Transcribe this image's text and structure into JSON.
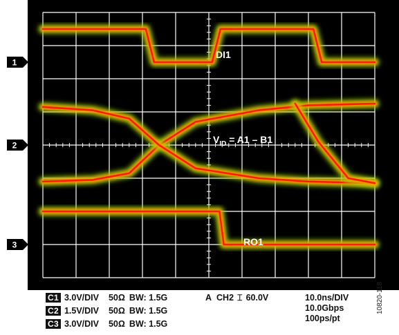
{
  "chart_data": {
    "type": "line",
    "title": "",
    "xlabel": "",
    "ylabel": "",
    "grid": true,
    "divisions": {
      "x": 10,
      "y": 8
    },
    "channel_markers": [
      "1",
      "2",
      "3"
    ],
    "annotations": {
      "di1": "DI1",
      "vid_main": "V",
      "vid_sub": "ID",
      "vid_rest": " = A1 – B1",
      "ro1": "RO1"
    },
    "series": [
      {
        "name": "DI1",
        "x_div": [
          0.0,
          3.1,
          3.35,
          5.1,
          5.35,
          8.15,
          8.4,
          10.0
        ],
        "y_div": [
          0.5,
          0.5,
          1.5,
          1.5,
          0.5,
          0.5,
          1.5,
          1.5
        ]
      },
      {
        "name": "V_ID rising",
        "x_div": [
          0.0,
          1.5,
          2.6,
          3.5,
          4.6,
          6.5,
          8.0,
          10.0
        ],
        "y_div": [
          5.1,
          5.05,
          4.85,
          4.0,
          3.3,
          2.95,
          2.8,
          2.75
        ]
      },
      {
        "name": "V_ID falling",
        "x_div": [
          0.0,
          1.5,
          2.6,
          3.5,
          4.6,
          6.5,
          8.0,
          10.0
        ],
        "y_div": [
          2.85,
          2.95,
          3.2,
          4.0,
          4.7,
          5.0,
          5.1,
          5.15
        ]
      },
      {
        "name": "V_ID transition",
        "x_div": [
          7.6,
          8.3,
          9.2,
          10.0
        ],
        "y_div": [
          2.75,
          3.9,
          5.0,
          5.15
        ]
      },
      {
        "name": "RO1",
        "x_div": [
          0.0,
          5.32,
          5.45,
          5.58,
          10.0
        ],
        "y_div": [
          6.0,
          6.0,
          7.0,
          7.0,
          7.0
        ]
      }
    ],
    "settings": {
      "c1": {
        "badge": "C1",
        "vdiv": "3.0V/DIV",
        "imp": "50Ω",
        "bw": "BW: 1.5G"
      },
      "c2": {
        "badge": "C2",
        "vdiv": "1.5V/DIV",
        "imp": "50Ω",
        "bw": "BW: 1.5G"
      },
      "c3": {
        "badge": "C3",
        "vdiv": "3.0V/DIV",
        "imp": "50Ω",
        "bw": "BW: 1.5G"
      },
      "trigger": {
        "mode": "A",
        "source": "CH2",
        "symbol": "⌶",
        "level": "60.0V"
      },
      "timebase": {
        "tdiv": "10.0ns/DIV",
        "rate": "10.0Gbps",
        "res": "100ps/pt"
      }
    }
  },
  "figure_id": "10820-118",
  "colors": {
    "background": "#000000",
    "grid": "#ffffff",
    "trace_core": "#ff1a00",
    "trace_glow": "#ff9a00",
    "trace_halo": "#9ad60a",
    "label": "#ffffff"
  }
}
